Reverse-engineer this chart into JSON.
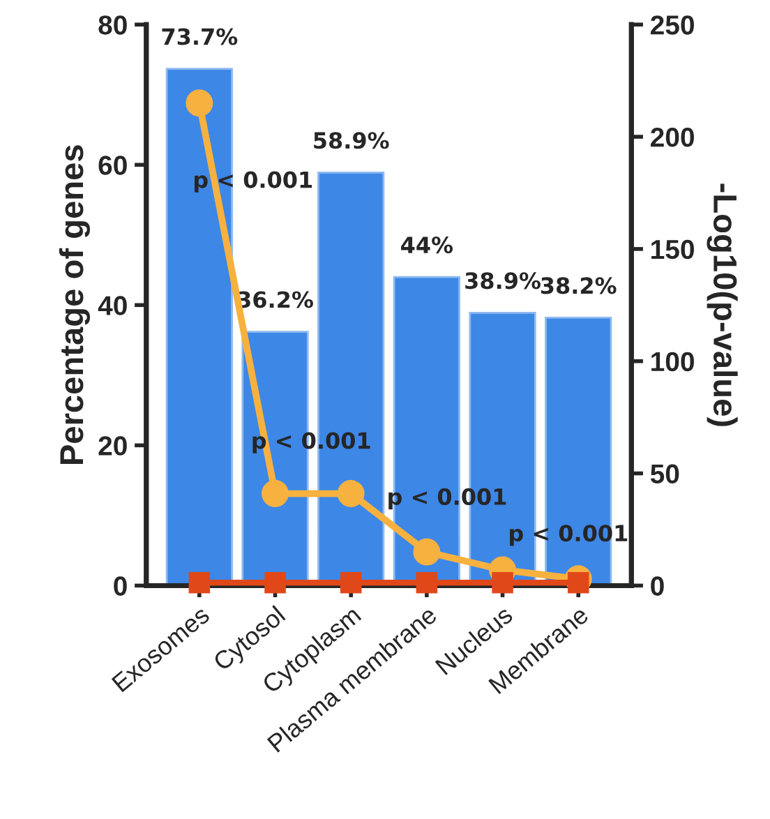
{
  "chart_data": {
    "type": "bar",
    "xlabel": null,
    "ylabel": "Percentage of genes",
    "y2label": "-Log10(p-value)",
    "categories": [
      "Exosomes",
      "Cytosol",
      "Cytoplasm",
      "Plasma membrane",
      "Nucleus",
      "Membrane"
    ],
    "series": [
      {
        "color": "#3d87e6",
        "values": [
          73.7,
          36.2,
          58.9,
          44,
          38.9,
          38.2
        ],
        "value_labels": [
          "73.7%",
          "36.2%",
          "58.9%",
          "44%",
          "38.9%",
          "38.2%"
        ]
      },
      {
        "type": "line",
        "axis": "y2",
        "color": "#f7b13f",
        "marker": "circle",
        "values": [
          215,
          41,
          41,
          15,
          7,
          3
        ]
      },
      {
        "type": "line",
        "axis": "y2",
        "color": "#e0481a",
        "marker": "square",
        "values": [
          1.3,
          1.3,
          1.3,
          1.3,
          1.3,
          1.3
        ]
      }
    ],
    "ylim": [
      0,
      80
    ],
    "yticks": [
      0,
      20,
      40,
      60,
      80
    ],
    "y2lim": [
      0,
      250
    ],
    "y2ticks": [
      0,
      50,
      100,
      150,
      200,
      250
    ],
    "grid": false,
    "legend": false,
    "annotations": [
      "p < 0.001",
      "p < 0.001",
      "p < 0.001",
      "p < 0.001"
    ]
  }
}
